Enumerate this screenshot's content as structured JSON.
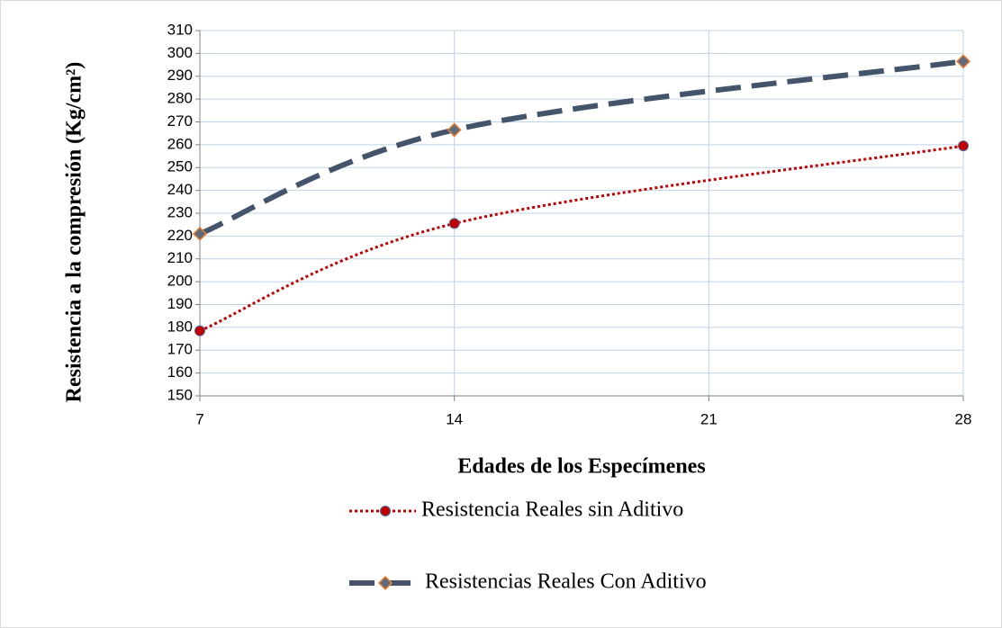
{
  "chart_data": {
    "type": "line",
    "ylabel": "Resistencia a la compresión (Kg/cm²)",
    "xlabel": "Edades de los Especímenes",
    "x": [
      7,
      14,
      28
    ],
    "xlim": [
      7,
      28
    ],
    "xticks": [
      7,
      14,
      21,
      28
    ],
    "ylim": [
      150,
      310
    ],
    "yticks": [
      150,
      160,
      170,
      180,
      190,
      200,
      210,
      220,
      230,
      240,
      250,
      260,
      270,
      280,
      290,
      300,
      310
    ],
    "grid": true,
    "series": [
      {
        "name": "Resistencia Reales sin Aditivo",
        "color": "#c00000",
        "values": [
          178.5,
          225.5,
          259.5
        ]
      },
      {
        "name": "Resistencias Reales Con Aditivo",
        "color": "#44546a",
        "values": [
          221,
          266.5,
          296.5
        ]
      }
    ]
  }
}
